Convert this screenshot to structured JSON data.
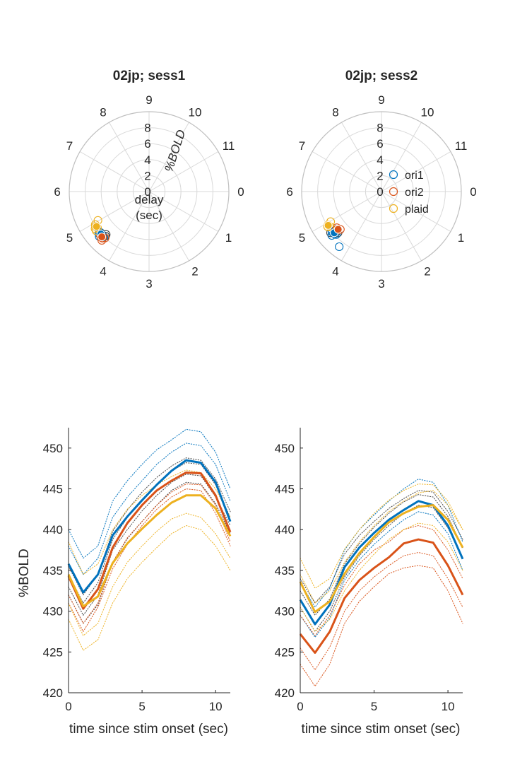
{
  "colors": {
    "ori1": "#0072BD",
    "ori2": "#D95319",
    "plaid": "#EDB120",
    "individual_gray": "#404040",
    "grid": "#D9D9D9",
    "axis": "#262626"
  },
  "chart_data": [
    {
      "type": "polar-scatter",
      "title": "02jp; sess1",
      "theta_ticks": [
        "0",
        "1",
        "2",
        "3",
        "4",
        "5",
        "6",
        "7",
        "8",
        "9",
        "10",
        "11"
      ],
      "r_ticks": [
        "0",
        "2",
        "4",
        "6",
        "8"
      ],
      "r_axis_label": "%BOLD",
      "theta_axis_label": "delay\n(sec)",
      "theta_axis_label_lines": [
        "delay",
        "(sec)"
      ],
      "theta_direction": "clockwise, 12 units per revolution, 0 at right",
      "rlim": [
        0,
        10
      ],
      "grid": true,
      "series": [
        {
          "name": "ori1",
          "points": [
            {
              "theta": 4.67,
              "r": 8.2
            },
            {
              "theta": 4.6,
              "r": 8.4
            },
            {
              "theta": 4.55,
              "r": 8.1
            },
            {
              "theta": 4.5,
              "r": 8.0
            },
            {
              "theta": 4.7,
              "r": 8.0
            },
            {
              "theta": 4.62,
              "r": 8.0
            }
          ],
          "mean": {
            "theta": 4.62,
            "r": 8.05
          }
        },
        {
          "name": "ori2",
          "points": [
            {
              "theta": 4.47,
              "r": 8.5
            },
            {
              "theta": 4.5,
              "r": 8.25
            },
            {
              "theta": 4.6,
              "r": 8.2
            },
            {
              "theta": 4.45,
              "r": 8.0
            },
            {
              "theta": 4.55,
              "r": 8.3
            }
          ],
          "mean": {
            "theta": 4.54,
            "r": 8.2
          }
        },
        {
          "name": "plaid",
          "points": [
            {
              "theta": 5.02,
              "r": 7.35
            },
            {
              "theta": 4.9,
              "r": 8.0
            },
            {
              "theta": 4.85,
              "r": 8.2
            },
            {
              "theta": 4.95,
              "r": 7.9
            },
            {
              "theta": 4.83,
              "r": 7.9
            },
            {
              "theta": 4.78,
              "r": 8.25
            }
          ],
          "mean": {
            "theta": 4.88,
            "r": 7.9
          }
        },
        {
          "name": "",
          "points": [
            {
              "theta": 4.52,
              "r": 8.1
            },
            {
              "theta": 4.48,
              "r": 7.8
            },
            {
              "theta": 4.58,
              "r": 8.0
            },
            {
              "theta": 4.5,
              "r": 7.6
            },
            {
              "theta": 4.65,
              "r": 7.95
            }
          ]
        }
      ]
    },
    {
      "type": "polar-scatter",
      "title": "02jp; sess2",
      "theta_ticks": [
        "0",
        "1",
        "2",
        "3",
        "4",
        "5",
        "6",
        "7",
        "8",
        "9",
        "10",
        "11"
      ],
      "r_ticks": [
        "0",
        "2",
        "4",
        "6",
        "8"
      ],
      "theta_direction": "clockwise, 12 units per revolution, 0 at right",
      "rlim": [
        0,
        10
      ],
      "grid": true,
      "legend": {
        "entries": [
          "ori1",
          "ori2",
          "plaid"
        ],
        "placement": "center-right"
      },
      "series": [
        {
          "name": "ori1",
          "points": [
            {
              "theta": 4.68,
              "r": 8.0
            },
            {
              "theta": 4.62,
              "r": 8.3
            },
            {
              "theta": 4.6,
              "r": 7.9
            },
            {
              "theta": 4.55,
              "r": 7.8
            },
            {
              "theta": 4.25,
              "r": 8.7
            },
            {
              "theta": 4.7,
              "r": 7.9
            }
          ],
          "mean": {
            "theta": 4.63,
            "r": 7.85
          }
        },
        {
          "name": "ori2",
          "points": [
            {
              "theta": 4.7,
              "r": 7.2
            },
            {
              "theta": 4.62,
              "r": 7.25
            },
            {
              "theta": 4.58,
              "r": 7.0
            },
            {
              "theta": 4.65,
              "r": 7.4
            }
          ],
          "mean": {
            "theta": 4.63,
            "r": 7.2
          }
        },
        {
          "name": "plaid",
          "points": [
            {
              "theta": 4.93,
              "r": 7.9
            },
            {
              "theta": 4.98,
              "r": 7.4
            },
            {
              "theta": 4.9,
              "r": 8.05
            },
            {
              "theta": 4.85,
              "r": 7.8
            }
          ],
          "mean": {
            "theta": 4.92,
            "r": 7.9
          }
        },
        {
          "name": "",
          "points": [
            {
              "theta": 4.66,
              "r": 7.4
            },
            {
              "theta": 4.7,
              "r": 8.2
            },
            {
              "theta": 4.6,
              "r": 7.7
            },
            {
              "theta": 4.55,
              "r": 7.5
            }
          ]
        }
      ]
    },
    {
      "type": "line",
      "xlabel": "time since stim onset (sec)",
      "ylabel": "%BOLD",
      "xlim": [
        0,
        11
      ],
      "ylim": [
        420,
        452.5
      ],
      "x_ticks": [
        0,
        5,
        10
      ],
      "y_ticks": [
        420,
        425,
        430,
        435,
        440,
        445,
        450
      ],
      "x": [
        0,
        1,
        2,
        3,
        4,
        5,
        6,
        7,
        8,
        9,
        10,
        11
      ],
      "series": [
        {
          "name": "ori1",
          "color": "ori1",
          "values": [
            435.8,
            432.3,
            434.5,
            439.3,
            441.6,
            443.6,
            445.5,
            447.2,
            448.5,
            448.2,
            445.8,
            441.0
          ],
          "dotted": [
            [
              440.0,
              436.5,
              438.0,
              443.5,
              446.0,
              448.0,
              449.8,
              451.0,
              452.3,
              452.0,
              449.5,
              445.0
            ],
            [
              438.0,
              434.5,
              436.5,
              441.5,
              444.0,
              446.0,
              448.0,
              449.5,
              450.6,
              450.3,
              448.0,
              443.5
            ]
          ]
        },
        {
          "name": "ori2",
          "color": "ori2",
          "values": [
            434.3,
            430.3,
            432.7,
            437.8,
            440.8,
            443.0,
            444.8,
            446.0,
            447.0,
            446.9,
            444.2,
            439.7
          ],
          "dotted": [
            [
              432.0,
              428.5,
              431.0,
              436.0,
              439.0,
              441.0,
              443.0,
              444.6,
              445.6,
              445.5,
              443.0,
              438.5
            ],
            [
              431.0,
              427.5,
              430.5,
              435.2,
              438.2,
              440.5,
              442.5,
              444.0,
              445.0,
              444.8,
              442.0,
              438.0
            ]
          ]
        },
        {
          "name": "plaid",
          "color": "plaid",
          "values": [
            434.5,
            430.6,
            431.8,
            435.9,
            438.3,
            440.1,
            441.8,
            443.3,
            444.2,
            444.2,
            442.6,
            439.2
          ],
          "dotted": [
            [
              429.0,
              425.2,
              426.5,
              431.0,
              434.0,
              436.0,
              437.8,
              439.5,
              440.5,
              440.0,
              438.0,
              435.0
            ],
            [
              431.0,
              427.0,
              428.5,
              433.0,
              436.0,
              438.0,
              439.8,
              441.3,
              442.0,
              441.5,
              439.5,
              436.5
            ],
            [
              438.5,
              434.5,
              435.8,
              440.0,
              442.5,
              444.2,
              445.5,
              446.5,
              447.3,
              447.0,
              445.0,
              441.5
            ]
          ]
        },
        {
          "name": "",
          "color": "individual_gray",
          "dotted": [
            [
              433.0,
              429.5,
              432.0,
              437.5,
              440.0,
              442.3,
              444.2,
              445.8,
              446.8,
              446.6,
              444.0,
              440.5
            ],
            [
              434.5,
              431.0,
              433.5,
              438.8,
              441.5,
              443.6,
              445.6,
              447.2,
              448.2,
              448.0,
              445.5,
              441.5
            ],
            [
              432.0,
              428.5,
              430.8,
              436.0,
              438.9,
              441.0,
              443.0,
              444.8,
              445.8,
              445.6,
              443.2,
              439.5
            ],
            [
              435.5,
              432.0,
              434.5,
              439.8,
              442.4,
              444.6,
              446.4,
              447.8,
              448.8,
              448.5,
              446.2,
              442.2
            ]
          ]
        }
      ]
    },
    {
      "type": "line",
      "xlabel": "time since stim onset (sec)",
      "xlim": [
        0,
        11
      ],
      "ylim": [
        420,
        452.5
      ],
      "x_ticks": [
        0,
        5,
        10
      ],
      "y_ticks": [
        420,
        425,
        430,
        435,
        440,
        445,
        450
      ],
      "x": [
        0,
        1,
        2,
        3,
        4,
        5,
        6,
        7,
        8,
        9,
        10,
        11
      ],
      "series": [
        {
          "name": "ori1",
          "color": "ori1",
          "values": [
            431.4,
            428.4,
            430.8,
            435.4,
            437.8,
            439.6,
            441.2,
            442.4,
            443.5,
            443.0,
            440.5,
            436.4
          ],
          "dotted": [
            [
              433.5,
              430.5,
              432.8,
              437.5,
              440.0,
              441.8,
              443.5,
              445.0,
              446.2,
              445.8,
              443.0,
              438.5
            ],
            [
              429.5,
              426.8,
              429.2,
              433.8,
              436.3,
              438.2,
              439.8,
              441.2,
              442.2,
              441.8,
              439.5,
              435.0
            ]
          ]
        },
        {
          "name": "ori2",
          "color": "ori2",
          "values": [
            427.2,
            424.9,
            427.5,
            431.6,
            433.8,
            435.3,
            436.6,
            438.3,
            438.8,
            438.4,
            435.6,
            432.0
          ],
          "dotted": [
            [
              423.5,
              420.8,
              423.5,
              428.5,
              431.2,
              433.0,
              434.6,
              435.3,
              435.6,
              435.3,
              432.5,
              428.5
            ],
            [
              425.5,
              422.8,
              425.6,
              430.0,
              432.5,
              434.2,
              435.6,
              436.8,
              437.2,
              436.8,
              434.0,
              430.5
            ],
            [
              429.5,
              427.0,
              429.5,
              433.2,
              435.8,
              437.5,
              438.5,
              440.0,
              440.5,
              440.0,
              437.5,
              434.0
            ]
          ]
        },
        {
          "name": "plaid",
          "color": "plaid",
          "values": [
            433.6,
            429.9,
            431.2,
            434.6,
            437.1,
            439.1,
            440.9,
            442.0,
            442.8,
            443.0,
            441.2,
            437.8
          ],
          "dotted": [
            [
              436.5,
              432.8,
              434.0,
              437.6,
              440.0,
              442.0,
              443.6,
              444.8,
              445.6,
              445.5,
              443.5,
              440.0
            ],
            [
              430.5,
              427.5,
              429.0,
              432.5,
              435.0,
              437.0,
              438.8,
              440.0,
              440.8,
              440.5,
              438.5,
              435.0
            ],
            [
              434.5,
              431.0,
              432.5,
              436.0,
              438.5,
              440.5,
              442.2,
              443.5,
              444.5,
              444.8,
              443.0,
              440.0
            ]
          ]
        },
        {
          "name": "",
          "color": "individual_gray",
          "dotted": [
            [
              432.5,
              429.5,
              431.5,
              435.8,
              438.3,
              440.3,
              442.0,
              443.4,
              444.3,
              444.0,
              441.6,
              437.8
            ],
            [
              430.5,
              427.5,
              430.0,
              434.2,
              436.8,
              438.8,
              440.5,
              442.0,
              443.0,
              442.7,
              440.2,
              436.5
            ],
            [
              434.0,
              431.0,
              433.0,
              437.0,
              439.3,
              441.0,
              442.6,
              443.8,
              444.8,
              444.6,
              442.2,
              438.8
            ]
          ]
        }
      ]
    }
  ]
}
